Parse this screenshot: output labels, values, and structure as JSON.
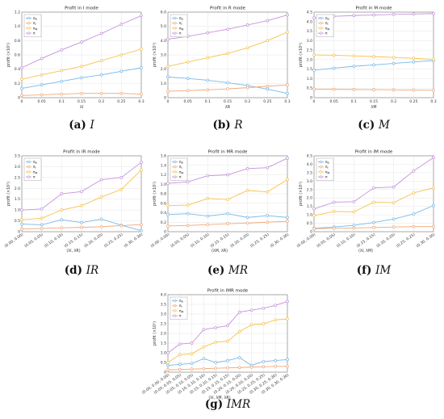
{
  "colors": {
    "pi_R": "#79b8e6",
    "pi_I": "#f0a878",
    "pi_M": "#f5c24e",
    "pi": "#c592dc"
  },
  "chart_data": [
    {
      "type": "line",
      "panel": "a",
      "title": "Profit in I mode",
      "xlabel": "λI",
      "ylabel": "profit (×10⁵)",
      "x": [
        0,
        0.05,
        0.1,
        0.15,
        0.2,
        0.25,
        0.3
      ],
      "xticks": [
        "0",
        "0.05",
        "0.1",
        "0.15",
        "0.2",
        "0.25",
        "0.3"
      ],
      "xlim": [
        0,
        0.3
      ],
      "ylim": [
        0,
        1.2
      ],
      "yticks": [
        "0",
        "0.2",
        "0.4",
        "0.6",
        "0.8",
        "1.0",
        "1.2"
      ],
      "legend": [
        "π_R",
        "π_I",
        "π_M",
        "π"
      ],
      "series": [
        {
          "name": "π_R",
          "color": "#79b8e6",
          "values": [
            0.13,
            0.18,
            0.23,
            0.28,
            0.32,
            0.37,
            0.42
          ]
        },
        {
          "name": "π_I",
          "color": "#f0a878",
          "values": [
            0.03,
            0.04,
            0.05,
            0.06,
            0.06,
            0.06,
            0.05
          ]
        },
        {
          "name": "π_M",
          "color": "#f5c24e",
          "values": [
            0.26,
            0.32,
            0.38,
            0.44,
            0.52,
            0.6,
            0.68
          ]
        },
        {
          "name": "π",
          "color": "#c592dc",
          "values": [
            0.42,
            0.55,
            0.67,
            0.78,
            0.9,
            1.03,
            1.15
          ]
        }
      ],
      "caption_label": "(a)",
      "caption_var": "I"
    },
    {
      "type": "line",
      "panel": "b",
      "title": "Profit in R mode",
      "xlabel": "λR",
      "ylabel": "profit (×10⁵)",
      "x": [
        0,
        0.05,
        0.1,
        0.15,
        0.2,
        0.25,
        0.3
      ],
      "xticks": [
        "0",
        "0.05",
        "0.1",
        "0.15",
        "0.2",
        "0.25",
        "0.3"
      ],
      "xlim": [
        0,
        0.3
      ],
      "ylim": [
        0,
        6
      ],
      "yticks": [
        "0",
        "1.0",
        "2.0",
        "3.0",
        "4.0",
        "5.0",
        "6.0"
      ],
      "legend": [
        "π_R",
        "π_I",
        "π_M",
        "π"
      ],
      "series": [
        {
          "name": "π_R",
          "color": "#79b8e6",
          "values": [
            1.45,
            1.35,
            1.22,
            1.05,
            0.85,
            0.6,
            0.3
          ]
        },
        {
          "name": "π_I",
          "color": "#f0a878",
          "values": [
            0.45,
            0.5,
            0.55,
            0.62,
            0.7,
            0.8,
            0.9
          ]
        },
        {
          "name": "π_M",
          "color": "#f5c24e",
          "values": [
            2.2,
            2.5,
            2.8,
            3.1,
            3.5,
            4.0,
            4.6
          ]
        },
        {
          "name": "π",
          "color": "#c592dc",
          "values": [
            4.1,
            4.3,
            4.55,
            4.8,
            5.1,
            5.4,
            5.8
          ]
        }
      ],
      "caption_label": "(b)",
      "caption_var": "R"
    },
    {
      "type": "line",
      "panel": "c",
      "title": "Profit in M mode",
      "xlabel": "λM",
      "ylabel": "profit (×10⁵)",
      "x": [
        0,
        0.05,
        0.1,
        0.15,
        0.2,
        0.25,
        0.3
      ],
      "xticks": [
        "0",
        "0.05",
        "0.1",
        "0.15",
        "0.2",
        "0.25",
        "0.3"
      ],
      "xlim": [
        0,
        0.3
      ],
      "ylim": [
        0,
        4.5
      ],
      "yticks": [
        "0",
        "0.5",
        "1.0",
        "1.5",
        "2.0",
        "2.5",
        "3.0",
        "3.5",
        "4.0",
        "4.5"
      ],
      "legend": [
        "π_R",
        "π_I",
        "π_M",
        "π"
      ],
      "series": [
        {
          "name": "π_R",
          "color": "#79b8e6",
          "values": [
            1.45,
            1.55,
            1.65,
            1.72,
            1.8,
            1.88,
            1.95
          ]
        },
        {
          "name": "π_I",
          "color": "#f0a878",
          "values": [
            0.45,
            0.44,
            0.43,
            0.42,
            0.41,
            0.4,
            0.39
          ]
        },
        {
          "name": "π_M",
          "color": "#f5c24e",
          "values": [
            2.25,
            2.23,
            2.2,
            2.16,
            2.12,
            2.07,
            2.02
          ]
        },
        {
          "name": "π",
          "color": "#c592dc",
          "values": [
            4.2,
            4.28,
            4.32,
            4.35,
            4.38,
            4.4,
            4.42
          ]
        }
      ],
      "caption_label": "(c)",
      "caption_var": "M"
    },
    {
      "type": "line",
      "panel": "d",
      "title": "Profit in IR mode",
      "xlabel": "(λI, λR)",
      "ylabel": "profit (×10⁵)",
      "xticks": [
        "(0.00, 0.00)",
        "(0.05, 0.05)",
        "(0.10, 0.10)",
        "(0.15, 0.15)",
        "(0.20, 0.20)",
        "(0.25, 0.25)",
        "(0.30, 0.30)"
      ],
      "ylim": [
        0,
        3.5
      ],
      "yticks": [
        "0",
        "0.5",
        "1.0",
        "1.5",
        "2.0",
        "2.5",
        "3.0",
        "3.5"
      ],
      "legend": [
        "π_R",
        "π_I",
        "π_M",
        "π"
      ],
      "series": [
        {
          "name": "π_R",
          "color": "#79b8e6",
          "values": [
            0.35,
            0.32,
            0.55,
            0.42,
            0.58,
            0.3,
            0.05
          ]
        },
        {
          "name": "π_I",
          "color": "#f0a878",
          "values": [
            0.12,
            0.15,
            0.18,
            0.2,
            0.23,
            0.28,
            0.33
          ]
        },
        {
          "name": "π_M",
          "color": "#f5c24e",
          "values": [
            0.55,
            0.62,
            1.0,
            1.2,
            1.6,
            1.95,
            2.85
          ]
        },
        {
          "name": "π",
          "color": "#c592dc",
          "values": [
            1.0,
            1.05,
            1.75,
            1.85,
            2.4,
            2.5,
            3.2
          ]
        }
      ],
      "caption_label": "(d)",
      "caption_var": "IR"
    },
    {
      "type": "line",
      "panel": "e",
      "title": "Profit in MR mode",
      "xlabel": "(λM, λR)",
      "ylabel": "profit (×10⁵)",
      "xticks": [
        "(0.00, 0.00)",
        "(0.05, 0.05)",
        "(0.10, 0.10)",
        "(0.15, 0.15)",
        "(0.20, 0.20)",
        "(0.25, 0.25)",
        "(0.30, 0.30)"
      ],
      "ylim": [
        0,
        1.6
      ],
      "yticks": [
        "0",
        "0.2",
        "0.4",
        "0.6",
        "0.8",
        "1.0",
        "1.2",
        "1.4",
        "1.6"
      ],
      "legend": [
        "π_R",
        "π_I",
        "π_M",
        "π"
      ],
      "series": [
        {
          "name": "π_R",
          "color": "#79b8e6",
          "values": [
            0.36,
            0.38,
            0.33,
            0.38,
            0.3,
            0.34,
            0.3
          ]
        },
        {
          "name": "π_I",
          "color": "#f0a878",
          "values": [
            0.12,
            0.13,
            0.15,
            0.17,
            0.18,
            0.2,
            0.22
          ]
        },
        {
          "name": "π_M",
          "color": "#f5c24e",
          "values": [
            0.55,
            0.56,
            0.7,
            0.68,
            0.87,
            0.84,
            1.1
          ]
        },
        {
          "name": "π",
          "color": "#c592dc",
          "values": [
            1.02,
            1.05,
            1.18,
            1.2,
            1.33,
            1.35,
            1.55
          ]
        }
      ],
      "caption_label": "(e)",
      "caption_var": "MR"
    },
    {
      "type": "line",
      "panel": "f",
      "title": "Profit in IM mode",
      "xlabel": "(λI, λM)",
      "ylabel": "profit (×10⁵)",
      "xticks": [
        "(0.00, 0.00)",
        "(0.05, 0.05)",
        "(0.10, 0.10)",
        "(0.15, 0.15)",
        "(0.20, 0.20)",
        "(0.25, 0.25)",
        "(0.30, 0.30)"
      ],
      "ylim": [
        0,
        4.5
      ],
      "yticks": [
        "0",
        "0.5",
        "1.0",
        "1.5",
        "2.0",
        "2.5",
        "3.0",
        "3.5",
        "4.0",
        "4.5"
      ],
      "legend": [
        "π_R",
        "π_I",
        "π_M",
        "π"
      ],
      "series": [
        {
          "name": "π_R",
          "color": "#79b8e6",
          "values": [
            0.2,
            0.28,
            0.38,
            0.55,
            0.75,
            1.05,
            1.55
          ]
        },
        {
          "name": "π_I",
          "color": "#f0a878",
          "values": [
            0.18,
            0.2,
            0.22,
            0.25,
            0.28,
            0.3,
            0.3
          ]
        },
        {
          "name": "π_M",
          "color": "#f5c24e",
          "values": [
            0.95,
            1.2,
            1.18,
            1.75,
            1.72,
            2.3,
            2.6
          ]
        },
        {
          "name": "π",
          "color": "#c592dc",
          "values": [
            1.35,
            1.75,
            1.78,
            2.6,
            2.65,
            3.6,
            4.4
          ]
        }
      ],
      "caption_label": "(f)",
      "caption_var": "IM"
    },
    {
      "type": "line",
      "panel": "g",
      "title": "Profit in IMR mode",
      "xlabel": "(λI, λM, λR)",
      "ylabel": "profit (×10⁵)",
      "xticks": [
        "(0.00, 0.00, 0.00)",
        "(0.05, 0.05, 0.05)",
        "(0.05, 0.10, 0.05)",
        "(0.10, 0.10, 0.10)",
        "(0.15, 0.10, 0.15)",
        "(0.15, 0.15, 0.15)",
        "(0.20, 0.15, 0.20)",
        "(0.20, 0.20, 0.20)",
        "(0.25, 0.25, 0.25)",
        "(0.30, 0.25, 0.30)",
        "(0.30, 0.30, 0.30)"
      ],
      "ylim": [
        0,
        4.0
      ],
      "yticks": [
        "0",
        "0.5",
        "1.0",
        "1.5",
        "2.0",
        "2.5",
        "3.0",
        "3.5",
        "4.0"
      ],
      "legend": [
        "π_R",
        "π_I",
        "π_M",
        "π"
      ],
      "series": [
        {
          "name": "π_R",
          "color": "#79b8e6",
          "values": [
            0.35,
            0.4,
            0.45,
            0.7,
            0.5,
            0.6,
            0.75,
            0.35,
            0.55,
            0.6,
            0.65
          ]
        },
        {
          "name": "π_I",
          "color": "#f0a878",
          "values": [
            0.12,
            0.14,
            0.16,
            0.18,
            0.2,
            0.22,
            0.24,
            0.26,
            0.28,
            0.3,
            0.3
          ]
        },
        {
          "name": "π_M",
          "color": "#f5c24e",
          "values": [
            0.5,
            0.9,
            0.95,
            1.3,
            1.55,
            1.6,
            2.1,
            2.45,
            2.5,
            2.7,
            2.75
          ]
        },
        {
          "name": "π",
          "color": "#c592dc",
          "values": [
            1.0,
            1.45,
            1.5,
            2.2,
            2.3,
            2.4,
            3.1,
            3.2,
            3.3,
            3.45,
            3.65
          ]
        }
      ],
      "caption_label": "(g)",
      "caption_var": "IMR"
    }
  ]
}
